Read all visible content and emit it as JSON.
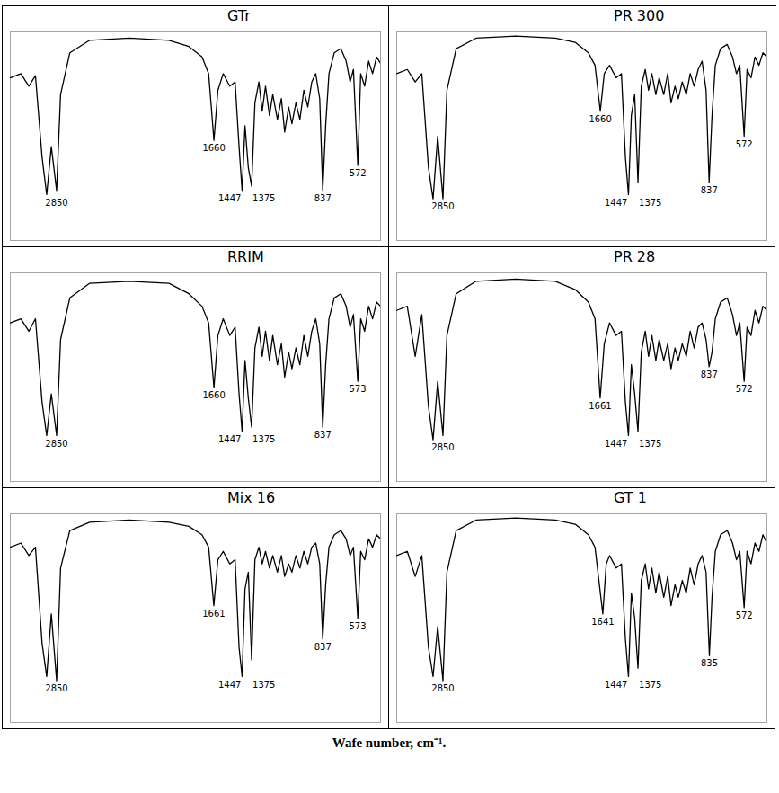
{
  "caption": "Wafe number, cm⁻¹.",
  "chart_data": [
    {
      "type": "line",
      "title": "GTr",
      "color": "#000000",
      "tick_labels": false,
      "xlim": [
        3200,
        400
      ],
      "ylim": [
        0,
        100
      ],
      "x": [
        3200,
        3120,
        3060,
        3010,
        2960,
        2925,
        2890,
        2850,
        2820,
        2750,
        2600,
        2300,
        2000,
        1850,
        1750,
        1700,
        1660,
        1630,
        1590,
        1540,
        1500,
        1470,
        1447,
        1425,
        1400,
        1375,
        1350,
        1320,
        1295,
        1270,
        1240,
        1215,
        1180,
        1150,
        1125,
        1095,
        1070,
        1040,
        1010,
        980,
        950,
        920,
        890,
        860,
        837,
        815,
        790,
        750,
        700,
        660,
        630,
        605,
        572,
        550,
        520,
        490,
        460,
        430,
        400
      ],
      "values": [
        78,
        80,
        74,
        79,
        40,
        22,
        45,
        24,
        70,
        90,
        96,
        97,
        96,
        93,
        88,
        80,
        48,
        72,
        80,
        74,
        76,
        45,
        24,
        55,
        35,
        26,
        66,
        76,
        62,
        74,
        60,
        70,
        58,
        68,
        52,
        64,
        56,
        66,
        58,
        72,
        64,
        76,
        80,
        68,
        24,
        55,
        80,
        90,
        92,
        86,
        76,
        82,
        36,
        80,
        74,
        86,
        80,
        88,
        85
      ],
      "peak_labels": [
        2850,
        1660,
        1447,
        1375,
        837,
        572
      ]
    },
    {
      "type": "line",
      "title": "PR 300",
      "color": "#000000",
      "tick_labels": false,
      "xlim": [
        3200,
        400
      ],
      "ylim": [
        0,
        100
      ],
      "x": [
        3200,
        3120,
        3060,
        3010,
        2960,
        2925,
        2890,
        2850,
        2820,
        2750,
        2600,
        2300,
        2000,
        1850,
        1750,
        1700,
        1660,
        1630,
        1590,
        1540,
        1500,
        1470,
        1447,
        1425,
        1400,
        1375,
        1350,
        1320,
        1295,
        1270,
        1240,
        1215,
        1180,
        1150,
        1125,
        1095,
        1070,
        1040,
        1010,
        980,
        950,
        920,
        890,
        860,
        837,
        815,
        790,
        750,
        700,
        660,
        630,
        605,
        572,
        550,
        520,
        490,
        460,
        430,
        400
      ],
      "values": [
        80,
        82,
        76,
        80,
        35,
        20,
        50,
        20,
        72,
        92,
        97,
        98,
        97,
        95,
        90,
        84,
        62,
        80,
        84,
        78,
        80,
        40,
        22,
        60,
        70,
        28,
        74,
        82,
        72,
        80,
        70,
        78,
        70,
        80,
        66,
        74,
        68,
        76,
        70,
        80,
        74,
        82,
        86,
        72,
        28,
        60,
        84,
        92,
        94,
        88,
        80,
        84,
        50,
        82,
        78,
        88,
        84,
        90,
        88
      ],
      "peak_labels": [
        2850,
        1660,
        1447,
        1375,
        837,
        572
      ]
    },
    {
      "type": "line",
      "title": "RRIM",
      "color": "#000000",
      "tick_labels": false,
      "xlim": [
        3200,
        400
      ],
      "ylim": [
        0,
        100
      ],
      "x": [
        3200,
        3120,
        3060,
        3010,
        2960,
        2925,
        2890,
        2850,
        2820,
        2750,
        2600,
        2300,
        2000,
        1850,
        1750,
        1700,
        1660,
        1630,
        1590,
        1540,
        1500,
        1470,
        1447,
        1425,
        1400,
        1375,
        1350,
        1320,
        1295,
        1270,
        1240,
        1215,
        1180,
        1150,
        1125,
        1095,
        1070,
        1040,
        1010,
        980,
        950,
        920,
        890,
        860,
        837,
        815,
        790,
        750,
        700,
        660,
        630,
        605,
        572,
        550,
        520,
        490,
        460,
        430,
        400
      ],
      "values": [
        76,
        78,
        72,
        78,
        38,
        22,
        42,
        22,
        68,
        88,
        95,
        96,
        95,
        90,
        84,
        76,
        45,
        70,
        78,
        70,
        74,
        42,
        24,
        58,
        40,
        26,
        64,
        74,
        60,
        72,
        58,
        70,
        56,
        66,
        50,
        62,
        54,
        64,
        56,
        70,
        60,
        72,
        78,
        66,
        26,
        56,
        78,
        88,
        90,
        84,
        74,
        80,
        48,
        78,
        72,
        84,
        78,
        86,
        84
      ],
      "peak_labels": [
        2850,
        1660,
        1447,
        1375,
        837,
        573
      ]
    },
    {
      "type": "line",
      "title": "PR 28",
      "color": "#000000",
      "tick_labels": false,
      "xlim": [
        3200,
        400
      ],
      "ylim": [
        0,
        100
      ],
      "x": [
        3200,
        3120,
        3060,
        3010,
        2960,
        2925,
        2890,
        2850,
        2820,
        2750,
        2600,
        2300,
        2000,
        1850,
        1750,
        1700,
        1661,
        1630,
        1590,
        1540,
        1500,
        1470,
        1447,
        1425,
        1400,
        1375,
        1350,
        1320,
        1295,
        1270,
        1240,
        1215,
        1180,
        1150,
        1125,
        1095,
        1070,
        1040,
        1010,
        980,
        950,
        920,
        890,
        860,
        837,
        815,
        790,
        750,
        700,
        660,
        630,
        605,
        572,
        550,
        520,
        490,
        460,
        430,
        400
      ],
      "values": [
        82,
        84,
        60,
        80,
        36,
        20,
        48,
        22,
        70,
        90,
        96,
        97,
        96,
        92,
        86,
        78,
        40,
        66,
        76,
        70,
        72,
        38,
        22,
        56,
        42,
        24,
        62,
        72,
        60,
        70,
        58,
        68,
        58,
        66,
        54,
        64,
        58,
        66,
        60,
        72,
        64,
        74,
        76,
        68,
        55,
        62,
        78,
        86,
        88,
        80,
        70,
        76,
        48,
        74,
        70,
        82,
        76,
        84,
        82
      ],
      "peak_labels": [
        2850,
        1661,
        1447,
        1375,
        837,
        572
      ]
    },
    {
      "type": "line",
      "title": "Mix 16",
      "color": "#000000",
      "tick_labels": false,
      "xlim": [
        3200,
        400
      ],
      "ylim": [
        0,
        100
      ],
      "x": [
        3200,
        3120,
        3060,
        3010,
        2960,
        2925,
        2890,
        2850,
        2820,
        2750,
        2600,
        2300,
        2000,
        1850,
        1750,
        1700,
        1661,
        1630,
        1590,
        1540,
        1500,
        1470,
        1447,
        1425,
        1400,
        1375,
        1350,
        1320,
        1295,
        1270,
        1240,
        1215,
        1180,
        1150,
        1125,
        1095,
        1070,
        1040,
        1010,
        980,
        950,
        920,
        890,
        860,
        837,
        815,
        790,
        750,
        700,
        660,
        630,
        605,
        572,
        550,
        520,
        490,
        460,
        430,
        400
      ],
      "values": [
        84,
        86,
        80,
        84,
        38,
        22,
        52,
        20,
        74,
        92,
        96,
        97,
        96,
        94,
        90,
        84,
        56,
        78,
        82,
        76,
        78,
        36,
        22,
        64,
        72,
        30,
        78,
        84,
        76,
        82,
        74,
        80,
        72,
        80,
        70,
        76,
        72,
        80,
        74,
        82,
        76,
        84,
        86,
        76,
        40,
        66,
        84,
        90,
        92,
        88,
        80,
        84,
        50,
        82,
        78,
        88,
        84,
        90,
        88
      ],
      "peak_labels": [
        2850,
        1661,
        1447,
        1375,
        837,
        573
      ]
    },
    {
      "type": "line",
      "title": "GT 1",
      "color": "#000000",
      "tick_labels": false,
      "xlim": [
        3200,
        400
      ],
      "ylim": [
        0,
        100
      ],
      "x": [
        3200,
        3120,
        3060,
        3010,
        2960,
        2925,
        2890,
        2850,
        2820,
        2750,
        2600,
        2300,
        2000,
        1850,
        1750,
        1700,
        1641,
        1615,
        1590,
        1540,
        1500,
        1470,
        1447,
        1425,
        1400,
        1375,
        1350,
        1320,
        1295,
        1270,
        1240,
        1215,
        1180,
        1150,
        1125,
        1095,
        1070,
        1040,
        1010,
        980,
        950,
        920,
        890,
        860,
        835,
        815,
        790,
        750,
        700,
        660,
        630,
        605,
        572,
        550,
        520,
        490,
        460,
        430,
        400
      ],
      "values": [
        80,
        82,
        70,
        80,
        36,
        22,
        46,
        20,
        72,
        92,
        97,
        98,
        97,
        95,
        90,
        84,
        52,
        76,
        80,
        74,
        76,
        40,
        22,
        62,
        50,
        26,
        68,
        76,
        64,
        74,
        62,
        72,
        60,
        70,
        56,
        66,
        60,
        68,
        62,
        74,
        66,
        76,
        80,
        72,
        32,
        60,
        82,
        90,
        92,
        86,
        78,
        82,
        55,
        82,
        76,
        86,
        82,
        90,
        86
      ],
      "peak_labels": [
        2850,
        1641,
        1447,
        1375,
        835,
        572
      ]
    }
  ]
}
